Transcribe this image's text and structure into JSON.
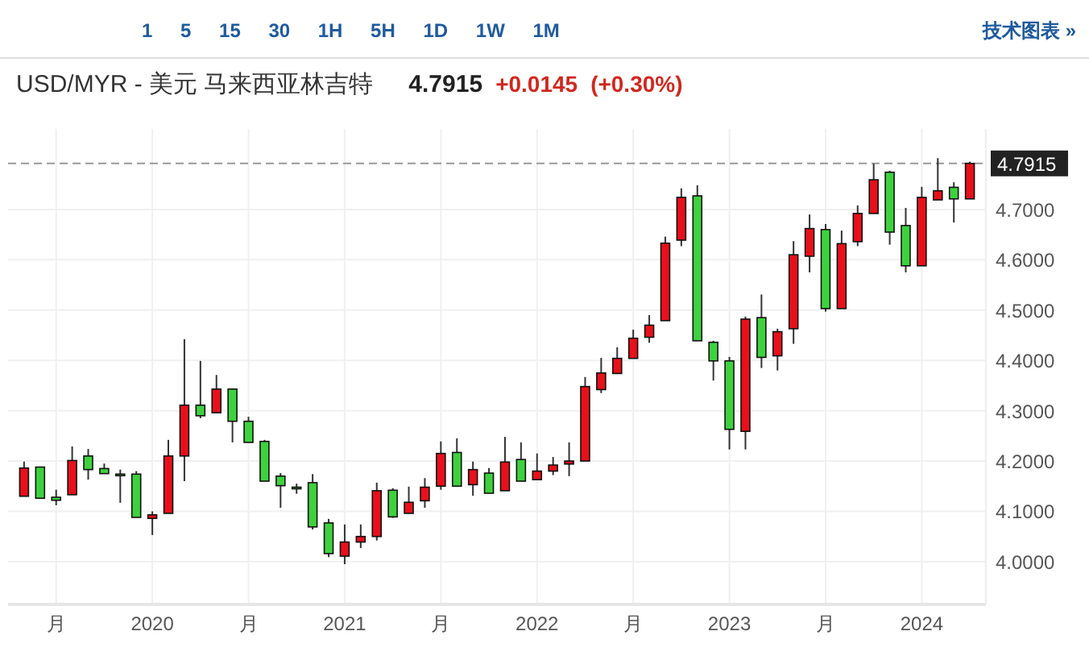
{
  "chart_data": {
    "type": "candlestick",
    "title": "USD/MYR - 美元 马来西亚林吉特",
    "annotations": [
      "1 5 15 30 1H 5H 1D 1W 1M",
      "技术图表 »",
      "4.7915",
      "+0.0145",
      "(+0.30%)"
    ],
    "x": [
      "2019-05",
      "2019-06",
      "2019-07",
      "2019-08",
      "2019-09",
      "2019-10",
      "2019-11",
      "2019-12",
      "2020-01",
      "2020-02",
      "2020-03",
      "2020-04",
      "2020-05",
      "2020-06",
      "2020-07",
      "2020-08",
      "2020-09",
      "2020-10",
      "2020-11",
      "2020-12",
      "2021-01",
      "2021-02",
      "2021-03",
      "2021-04",
      "2021-05",
      "2021-06",
      "2021-07",
      "2021-08",
      "2021-09",
      "2021-10",
      "2021-11",
      "2021-12",
      "2022-01",
      "2022-02",
      "2022-03",
      "2022-04",
      "2022-05",
      "2022-06",
      "2022-07",
      "2022-08",
      "2022-09",
      "2022-10",
      "2022-11",
      "2022-12",
      "2023-01",
      "2023-02",
      "2023-03",
      "2023-04",
      "2023-05",
      "2023-06",
      "2023-07",
      "2023-08",
      "2023-09",
      "2023-10",
      "2023-11",
      "2023-12",
      "2024-01",
      "2024-02",
      "2024-03",
      "2024-04"
    ],
    "ohlc": [
      [
        4.13,
        4.199,
        4.13,
        4.186
      ],
      [
        4.188,
        4.188,
        4.126,
        4.126
      ],
      [
        4.128,
        4.143,
        4.112,
        4.122
      ],
      [
        4.133,
        4.229,
        4.133,
        4.201
      ],
      [
        4.21,
        4.224,
        4.163,
        4.183
      ],
      [
        4.185,
        4.195,
        4.175,
        4.175
      ],
      [
        4.174,
        4.183,
        4.117,
        4.172
      ],
      [
        4.174,
        4.18,
        4.088,
        4.088
      ],
      [
        4.086,
        4.1,
        4.053,
        4.093
      ],
      [
        4.096,
        4.242,
        4.096,
        4.21
      ],
      [
        4.21,
        4.442,
        4.16,
        4.311
      ],
      [
        4.311,
        4.399,
        4.285,
        4.29
      ],
      [
        4.296,
        4.371,
        4.296,
        4.343
      ],
      [
        4.343,
        4.343,
        4.237,
        4.279
      ],
      [
        4.279,
        4.288,
        4.237,
        4.237
      ],
      [
        4.239,
        4.242,
        4.16,
        4.16
      ],
      [
        4.17,
        4.176,
        4.107,
        4.151
      ],
      [
        4.148,
        4.155,
        4.135,
        4.146
      ],
      [
        4.157,
        4.174,
        4.064,
        4.069
      ],
      [
        4.077,
        4.085,
        4.009,
        4.016
      ],
      [
        4.011,
        4.074,
        3.995,
        4.039
      ],
      [
        4.039,
        4.074,
        4.027,
        4.05
      ],
      [
        4.05,
        4.157,
        4.042,
        4.141
      ],
      [
        4.142,
        4.146,
        4.087,
        4.089
      ],
      [
        4.096,
        4.149,
        4.096,
        4.118
      ],
      [
        4.121,
        4.166,
        4.107,
        4.148
      ],
      [
        4.15,
        4.239,
        4.143,
        4.215
      ],
      [
        4.217,
        4.245,
        4.15,
        4.15
      ],
      [
        4.153,
        4.199,
        4.131,
        4.183
      ],
      [
        4.176,
        4.186,
        4.136,
        4.136
      ],
      [
        4.141,
        4.248,
        4.141,
        4.198
      ],
      [
        4.203,
        4.237,
        4.16,
        4.16
      ],
      [
        4.163,
        4.215,
        4.163,
        4.18
      ],
      [
        4.18,
        4.208,
        4.172,
        4.192
      ],
      [
        4.194,
        4.237,
        4.17,
        4.2
      ],
      [
        4.2,
        4.367,
        4.2,
        4.348
      ],
      [
        4.342,
        4.405,
        4.335,
        4.375
      ],
      [
        4.374,
        4.426,
        4.374,
        4.404
      ],
      [
        4.404,
        4.461,
        4.404,
        4.444
      ],
      [
        4.446,
        4.49,
        4.435,
        4.47
      ],
      [
        4.479,
        4.646,
        4.479,
        4.633
      ],
      [
        4.639,
        4.742,
        4.627,
        4.724
      ],
      [
        4.727,
        4.748,
        4.439,
        4.439
      ],
      [
        4.436,
        4.439,
        4.36,
        4.399
      ],
      [
        4.399,
        4.407,
        4.223,
        4.263
      ],
      [
        4.259,
        4.487,
        4.223,
        4.482
      ],
      [
        4.485,
        4.531,
        4.385,
        4.406
      ],
      [
        4.409,
        4.463,
        4.38,
        4.457
      ],
      [
        4.463,
        4.637,
        4.433,
        4.61
      ],
      [
        4.607,
        4.69,
        4.575,
        4.662
      ],
      [
        4.66,
        4.671,
        4.497,
        4.503
      ],
      [
        4.503,
        4.658,
        4.503,
        4.632
      ],
      [
        4.636,
        4.708,
        4.627,
        4.692
      ],
      [
        4.692,
        4.791,
        4.692,
        4.759
      ],
      [
        4.774,
        4.777,
        4.63,
        4.655
      ],
      [
        4.668,
        4.703,
        4.575,
        4.588
      ],
      [
        4.588,
        4.745,
        4.588,
        4.724
      ],
      [
        4.719,
        4.802,
        4.719,
        4.737
      ],
      [
        4.744,
        4.754,
        4.674,
        4.721
      ],
      [
        4.721,
        4.795,
        4.721,
        4.7915
      ]
    ],
    "colors": [
      "#e8101a",
      "#3dd23d",
      "#3dd23d",
      "#e8101a",
      "#3dd23d",
      "#3dd23d",
      "#3dd23d",
      "#3dd23d",
      "#e8101a",
      "#e8101a",
      "#e8101a",
      "#3dd23d",
      "#e8101a",
      "#3dd23d",
      "#3dd23d",
      "#3dd23d",
      "#3dd23d",
      "#3dd23d",
      "#3dd23d",
      "#3dd23d",
      "#e8101a",
      "#e8101a",
      "#e8101a",
      "#3dd23d",
      "#e8101a",
      "#e8101a",
      "#e8101a",
      "#3dd23d",
      "#e8101a",
      "#3dd23d",
      "#e8101a",
      "#3dd23d",
      "#e8101a",
      "#e8101a",
      "#e8101a",
      "#e8101a",
      "#e8101a",
      "#e8101a",
      "#e8101a",
      "#e8101a",
      "#e8101a",
      "#e8101a",
      "#3dd23d",
      "#3dd23d",
      "#3dd23d",
      "#e8101a",
      "#3dd23d",
      "#e8101a",
      "#e8101a",
      "#e8101a",
      "#3dd23d",
      "#e8101a",
      "#e8101a",
      "#e8101a",
      "#3dd23d",
      "#3dd23d",
      "#e8101a",
      "#e8101a",
      "#3dd23d",
      "#e8101a"
    ],
    "xlim": [
      "2019-04",
      "2024-05"
    ],
    "xticks": [
      {
        "value": "2019-07",
        "label": "月"
      },
      {
        "value": "2020-01",
        "label": "2020"
      },
      {
        "value": "2020-07",
        "label": "月"
      },
      {
        "value": "2021-01",
        "label": "2021"
      },
      {
        "value": "2021-07",
        "label": "月"
      },
      {
        "value": "2022-01",
        "label": "2022"
      },
      {
        "value": "2022-07",
        "label": "月"
      },
      {
        "value": "2023-01",
        "label": "2023"
      },
      {
        "value": "2023-07",
        "label": "月"
      },
      {
        "value": "2024-01",
        "label": "2024"
      }
    ],
    "ylim": [
      3.915,
      4.86
    ],
    "yticks": [
      {
        "value": 4.0,
        "label": "4.0000"
      },
      {
        "value": 4.1,
        "label": "4.1000"
      },
      {
        "value": 4.2,
        "label": "4.2000"
      },
      {
        "value": 4.3,
        "label": "4.3000"
      },
      {
        "value": 4.4,
        "label": "4.4000"
      },
      {
        "value": 4.5,
        "label": "4.5000"
      },
      {
        "value": 4.6,
        "label": "4.6000"
      },
      {
        "value": 4.7,
        "label": "4.7000"
      }
    ],
    "ref_lines": [
      {
        "axis": "y",
        "value": 4.7915,
        "label": "4.7915",
        "color": "#999999",
        "line_style": "dashed"
      }
    ],
    "grid": true
  }
}
